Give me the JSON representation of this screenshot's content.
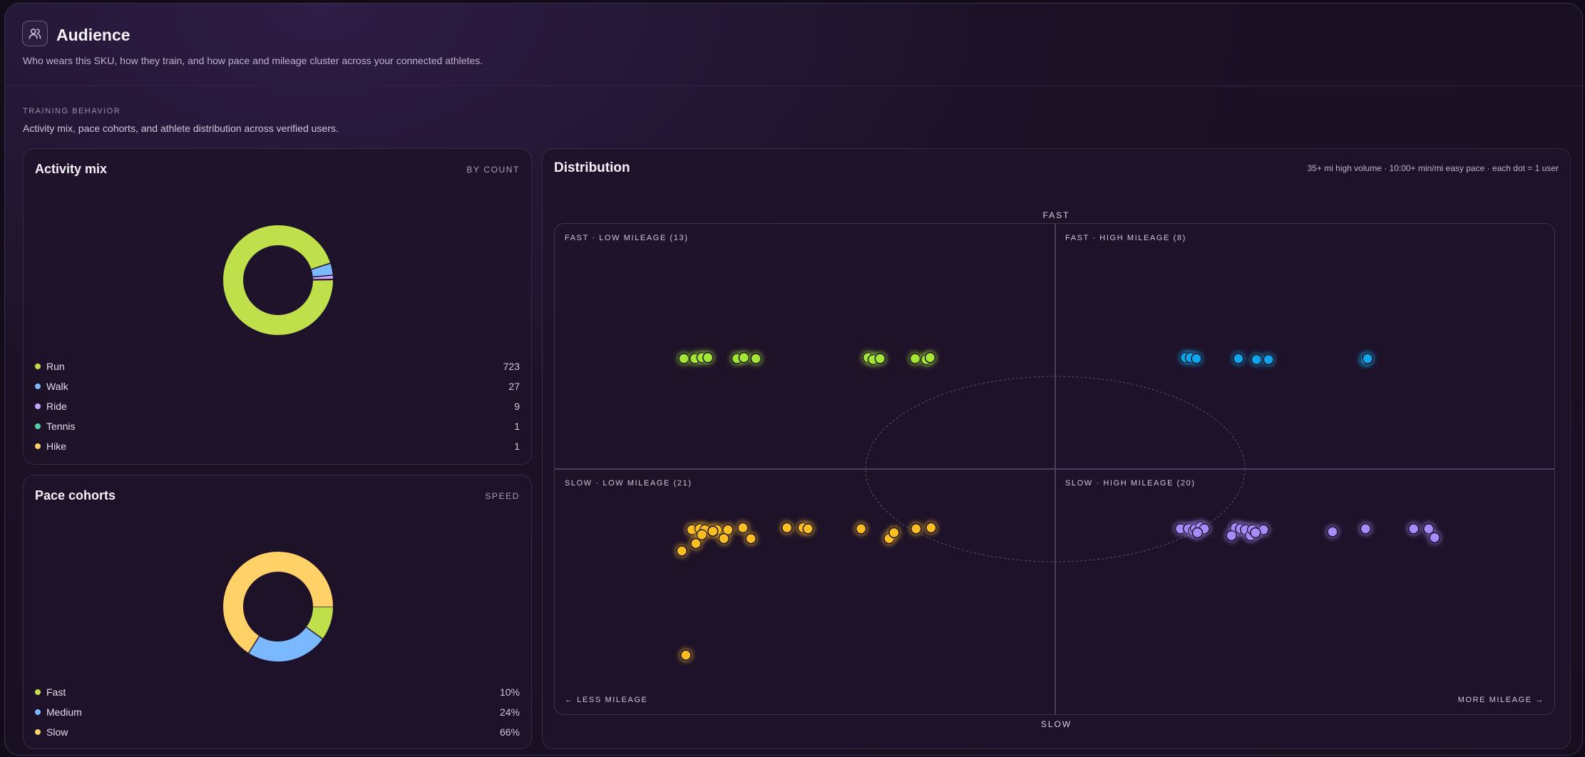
{
  "header": {
    "title": "Audience",
    "subtitle": "Who wears this SKU, how they train, and how pace and mileage cluster across your connected athletes.",
    "icon": "users-icon"
  },
  "section": {
    "kicker": "TRAINING BEHAVIOR",
    "subtitle": "Activity mix, pace cohorts, and athlete distribution across verified users."
  },
  "activity_mix": {
    "title": "Activity mix",
    "tag": "BY COUNT",
    "items": [
      {
        "label": "Run",
        "value": "723",
        "count": 723,
        "color": "#bfe04a"
      },
      {
        "label": "Walk",
        "value": "27",
        "count": 27,
        "color": "#7ab8ff"
      },
      {
        "label": "Ride",
        "value": "9",
        "count": 9,
        "color": "#c9a5ff"
      },
      {
        "label": "Tennis",
        "value": "1",
        "count": 1,
        "color": "#4fd1a5"
      },
      {
        "label": "Hike",
        "value": "1",
        "count": 1,
        "color": "#ffd166"
      }
    ]
  },
  "pace_cohorts": {
    "title": "Pace cohorts",
    "tag": "SPEED",
    "items": [
      {
        "label": "Fast",
        "value": "10%",
        "pct": 10,
        "color": "#bfe04a"
      },
      {
        "label": "Medium",
        "value": "24%",
        "pct": 24,
        "color": "#7ab8ff"
      },
      {
        "label": "Slow",
        "value": "66%",
        "pct": 66,
        "color": "#ffd166"
      }
    ]
  },
  "distribution": {
    "title": "Distribution",
    "note": "35+ mi high volume · 10:00+ min/mi easy pace · each dot = 1 user",
    "axis_top": "FAST",
    "axis_bottom": "SLOW",
    "left_label": "← LESS MILEAGE",
    "right_label": "MORE MILEAGE →",
    "quadrants": {
      "fast_low": "FAST · LOW MILEAGE (13)",
      "fast_high": "FAST · HIGH MILEAGE (8)",
      "slow_low": "SLOW · LOW MILEAGE (21)",
      "slow_high": "SLOW · HIGH MILEAGE (20)"
    },
    "colors": {
      "fast_low": "#a3e635",
      "fast_high": "#0ea5e9",
      "slow_low": "#fbbf24",
      "slow_high": "#a78bfa"
    },
    "dots": {
      "fast_low": [
        [
          0.129,
          0.274
        ],
        [
          0.14,
          0.274
        ],
        [
          0.147,
          0.272
        ],
        [
          0.153,
          0.272
        ],
        [
          0.182,
          0.274
        ],
        [
          0.189,
          0.272
        ],
        [
          0.201,
          0.274
        ],
        [
          0.313,
          0.272
        ],
        [
          0.318,
          0.276
        ],
        [
          0.325,
          0.274
        ],
        [
          0.36,
          0.274
        ],
        [
          0.371,
          0.276
        ],
        [
          0.375,
          0.272
        ]
      ],
      "fast_high": [
        [
          0.63,
          0.272
        ],
        [
          0.635,
          0.272
        ],
        [
          0.641,
          0.274
        ],
        [
          0.683,
          0.274
        ],
        [
          0.701,
          0.276
        ],
        [
          0.713,
          0.276
        ],
        [
          0.81,
          0.276
        ],
        [
          0.812,
          0.274
        ]
      ],
      "slow_low": [
        [
          0.137,
          0.622
        ],
        [
          0.145,
          0.62
        ],
        [
          0.15,
          0.622
        ],
        [
          0.147,
          0.632
        ],
        [
          0.162,
          0.622
        ],
        [
          0.173,
          0.622
        ],
        [
          0.169,
          0.64
        ],
        [
          0.188,
          0.618
        ],
        [
          0.196,
          0.64
        ],
        [
          0.232,
          0.618
        ],
        [
          0.248,
          0.618
        ],
        [
          0.253,
          0.62
        ],
        [
          0.306,
          0.62
        ],
        [
          0.334,
          0.64
        ],
        [
          0.339,
          0.628
        ],
        [
          0.361,
          0.62
        ],
        [
          0.376,
          0.618
        ],
        [
          0.141,
          0.65
        ],
        [
          0.127,
          0.665
        ],
        [
          0.131,
          0.877
        ],
        [
          0.158,
          0.625
        ]
      ],
      "slow_high": [
        [
          0.625,
          0.62
        ],
        [
          0.633,
          0.62
        ],
        [
          0.638,
          0.624
        ],
        [
          0.64,
          0.62
        ],
        [
          0.645,
          0.616
        ],
        [
          0.649,
          0.62
        ],
        [
          0.68,
          0.618
        ],
        [
          0.676,
          0.634
        ],
        [
          0.685,
          0.62
        ],
        [
          0.69,
          0.622
        ],
        [
          0.695,
          0.634
        ],
        [
          0.697,
          0.622
        ],
        [
          0.708,
          0.622
        ],
        [
          0.777,
          0.626
        ],
        [
          0.81,
          0.62
        ],
        [
          0.858,
          0.62
        ],
        [
          0.873,
          0.62
        ],
        [
          0.879,
          0.638
        ],
        [
          0.642,
          0.628
        ],
        [
          0.7,
          0.628
        ]
      ]
    }
  }
}
